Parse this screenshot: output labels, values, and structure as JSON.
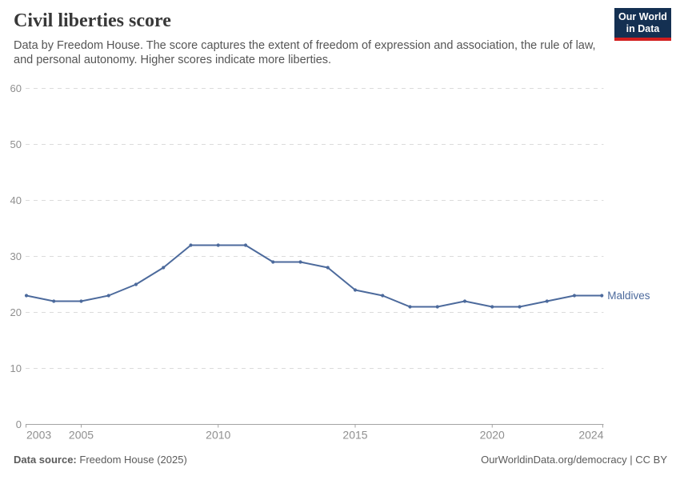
{
  "chart_data": {
    "type": "line",
    "title": "Civil liberties score",
    "subtitle": "Data by Freedom House. The score captures the extent of freedom of expression and association, the rule of law, and personal autonomy. Higher scores indicate more liberties.",
    "x": [
      2003,
      2004,
      2005,
      2006,
      2007,
      2008,
      2009,
      2010,
      2011,
      2012,
      2013,
      2014,
      2015,
      2016,
      2017,
      2018,
      2019,
      2020,
      2021,
      2022,
      2023,
      2024
    ],
    "series": [
      {
        "name": "Maldives",
        "color": "#4c6a9c",
        "values": [
          23,
          22,
          22,
          23,
          25,
          28,
          32,
          32,
          32,
          29,
          29,
          28,
          24,
          23,
          21,
          21,
          22,
          21,
          21,
          22,
          23,
          23
        ]
      }
    ],
    "xlabel": "",
    "ylabel": "",
    "ylim": [
      0,
      60
    ],
    "yticks": [
      0,
      10,
      20,
      30,
      40,
      50,
      60
    ],
    "xticks": [
      2003,
      2005,
      2010,
      2015,
      2020,
      2024
    ],
    "grid": "horizontal-dashed",
    "legend_position": "end-of-line-label"
  },
  "header": {
    "logo": {
      "line1": "Our World",
      "line2": "in Data"
    }
  },
  "footer": {
    "source_label": "Data source:",
    "source_value": "Freedom House (2025)",
    "link": "OurWorldinData.org/democracy",
    "separator": " | ",
    "license": "CC BY"
  },
  "colors": {
    "title": "#383838",
    "subtitle": "#555555",
    "footer": "#5b5b5b",
    "grid": "#dcdcdc",
    "axis": "#a3a3a3",
    "tick_label": "#8f8f8f",
    "line": "#4c6a9c",
    "logo_bg": "#143052",
    "logo_stripe": "#d21e1e"
  }
}
